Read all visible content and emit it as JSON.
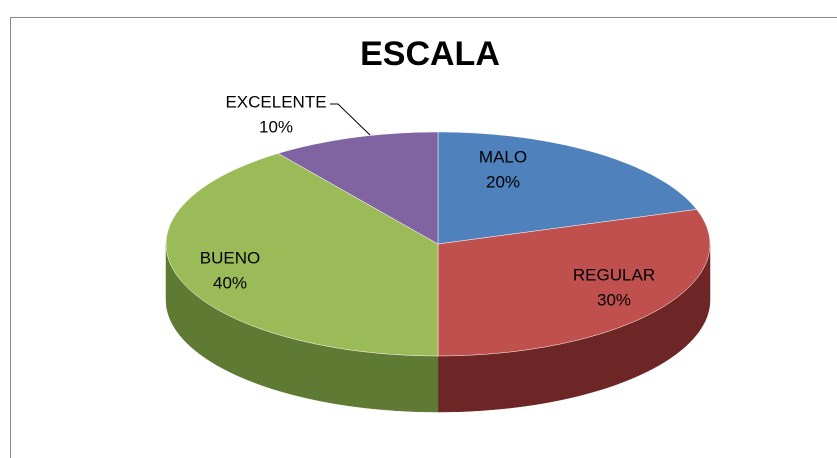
{
  "chart_data": {
    "type": "pie3d",
    "title": "ESCALA",
    "categories": [
      "MALO",
      "REGULAR",
      "BUENO",
      "EXCELENTE"
    ],
    "values": [
      20,
      30,
      40,
      10
    ],
    "value_labels": [
      "20%",
      "30%",
      "40%",
      "10%"
    ],
    "colors": [
      "#4f81bd",
      "#c0504d",
      "#9bbb59",
      "#8064a2"
    ],
    "side_colors": [
      "#3a6291",
      "#6e2525",
      "#5f7a33",
      "#5a4473"
    ]
  }
}
